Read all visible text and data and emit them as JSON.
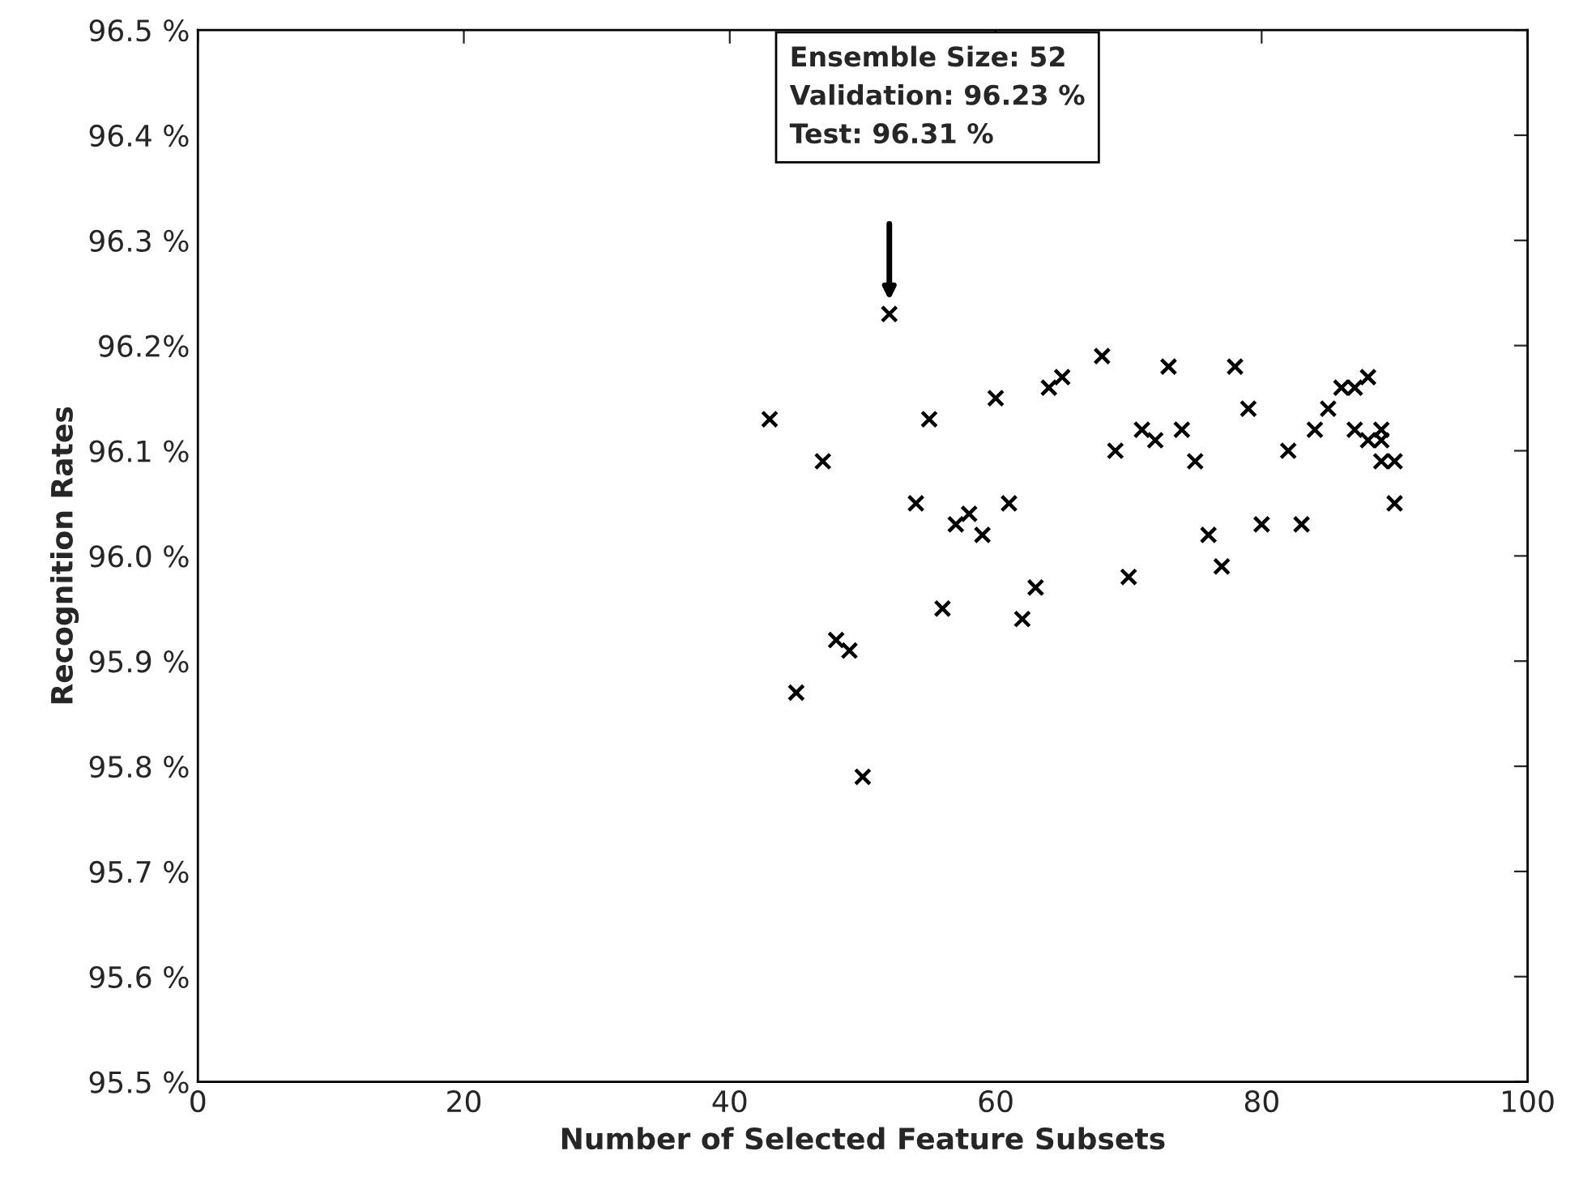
{
  "chart_data": {
    "type": "scatter",
    "xlabel": "Number of Selected Feature Subsets",
    "ylabel": "Recognition Rates",
    "x": [
      43,
      45,
      47,
      48,
      49,
      50,
      52,
      54,
      55,
      56,
      57,
      58,
      59,
      60,
      61,
      62,
      63,
      64,
      65,
      68,
      69,
      70,
      71,
      72,
      73,
      74,
      75,
      76,
      77,
      78,
      79,
      80,
      82,
      83,
      84,
      85,
      86,
      87,
      87,
      88,
      88,
      89,
      89,
      89,
      90,
      90
    ],
    "values": [
      96.13,
      95.87,
      96.09,
      95.92,
      95.91,
      95.79,
      96.23,
      96.05,
      96.13,
      95.95,
      96.03,
      96.04,
      96.02,
      96.15,
      96.05,
      95.94,
      95.97,
      96.16,
      96.17,
      96.19,
      96.1,
      95.98,
      96.12,
      96.11,
      96.18,
      96.12,
      96.09,
      96.02,
      95.99,
      96.18,
      96.14,
      96.03,
      96.1,
      96.03,
      96.12,
      96.14,
      96.16,
      96.16,
      96.12,
      96.17,
      96.11,
      96.12,
      96.11,
      96.09,
      96.09,
      96.05
    ],
    "color": "#000000",
    "marker": "cross",
    "grid": false,
    "xlim": [
      0,
      100
    ],
    "xticks": [
      0,
      20,
      40,
      60,
      80,
      100
    ],
    "ylim": [
      95.5,
      96.5
    ],
    "yticks": [
      {
        "value": 95.5,
        "label": "95.5 %"
      },
      {
        "value": 95.6,
        "label": "95.6 %"
      },
      {
        "value": 95.7,
        "label": "95.7 %"
      },
      {
        "value": 95.8,
        "label": "95.8 %"
      },
      {
        "value": 95.9,
        "label": "95.9 %"
      },
      {
        "value": 96.0,
        "label": "96.0 %"
      },
      {
        "value": 96.1,
        "label": "96.1 %"
      },
      {
        "value": 96.2,
        "label": "96.2%"
      },
      {
        "value": 96.3,
        "label": "96.3 %"
      },
      {
        "value": 96.4,
        "label": "96.4 %"
      },
      {
        "value": 96.5,
        "label": "96.5 %"
      }
    ],
    "annotations": [
      "Ensemble Size: 52\nValidation: 96.23 %\nTest: 96.31 %"
    ]
  }
}
